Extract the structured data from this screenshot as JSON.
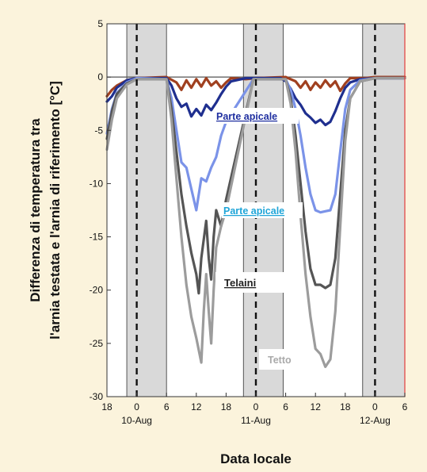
{
  "colors": {
    "background": "#fbf3dc",
    "plot_background": "#ffffff",
    "night_shade": "#d9d9d9",
    "brown": "#a0401f",
    "navy": "#1f2f8f",
    "light_blue": "#7b93e8",
    "dark_gray": "#555555",
    "light_gray": "#9c9c9c",
    "label_navy": "#1f2fa0",
    "label_cyan": "#1fa5d8",
    "label_gray": "#aaaaaa"
  },
  "chart_data": {
    "type": "line",
    "xlabel": "Data locale",
    "ylabel_line1": "Differenza di temperatura tra",
    "ylabel_line2": "l'arnia testata e l'arnia di riferimento [°C]",
    "xlim": [
      "09-Aug 18:00",
      "12-Aug 06:00"
    ],
    "ylim": [
      -30,
      5
    ],
    "y_ticks": [
      "5",
      "0",
      "-5",
      "-10",
      "-15",
      "-20",
      "-25",
      "-30"
    ],
    "x_ticks": [
      "18",
      "0",
      "6",
      "12",
      "18",
      "0",
      "6",
      "12",
      "18",
      "0",
      "6"
    ],
    "x_dates": [
      "10-Aug",
      "11-Aug",
      "12-Aug"
    ],
    "night_bands": [
      [
        "09-Aug 22:00",
        "10-Aug 06:00"
      ],
      [
        "10-Aug 21:30",
        "11-Aug 05:30"
      ],
      [
        "11-Aug 21:30",
        "12-Aug 06:00"
      ]
    ],
    "midnight_lines": [
      "10-Aug 00:00",
      "11-Aug 00:00",
      "12-Aug 00:00"
    ],
    "annotations": [
      {
        "text": "Parte apicale",
        "color": "navy"
      },
      {
        "text": "Parte apicale",
        "color": "cyan"
      },
      {
        "text": "Telaini",
        "color": "dark"
      },
      {
        "text": "Tetto",
        "color": "gray"
      }
    ],
    "series": [
      {
        "color_key": "brown",
        "points": [
          [
            "09-Aug 18:00",
            -1.8
          ],
          [
            "09-Aug 19:00",
            -1.2
          ],
          [
            "09-Aug 20:00",
            -0.8
          ],
          [
            "09-Aug 22:00",
            -0.3
          ],
          [
            "10-Aug 00:00",
            -0.1
          ],
          [
            "10-Aug 06:00",
            0.0
          ],
          [
            "10-Aug 08:00",
            -0.5
          ],
          [
            "10-Aug 09:00",
            -1.2
          ],
          [
            "10-Aug 10:00",
            -0.3
          ],
          [
            "10-Aug 11:00",
            -1.0
          ],
          [
            "10-Aug 12:00",
            -0.2
          ],
          [
            "10-Aug 13:00",
            -0.9
          ],
          [
            "10-Aug 14:00",
            -0.1
          ],
          [
            "10-Aug 15:00",
            -0.8
          ],
          [
            "10-Aug 16:00",
            -0.4
          ],
          [
            "10-Aug 17:00",
            -1.0
          ],
          [
            "10-Aug 18:00",
            -0.5
          ],
          [
            "10-Aug 19:00",
            -0.1
          ],
          [
            "10-Aug 22:00",
            -0.2
          ],
          [
            "11-Aug 00:00",
            -0.1
          ],
          [
            "11-Aug 06:00",
            0.0
          ],
          [
            "11-Aug 08:00",
            -0.4
          ],
          [
            "11-Aug 09:00",
            -1.0
          ],
          [
            "11-Aug 10:00",
            -0.4
          ],
          [
            "11-Aug 11:00",
            -1.2
          ],
          [
            "11-Aug 12:00",
            -0.5
          ],
          [
            "11-Aug 13:00",
            -1.0
          ],
          [
            "11-Aug 14:00",
            -0.3
          ],
          [
            "11-Aug 15:00",
            -0.9
          ],
          [
            "11-Aug 16:00",
            -0.4
          ],
          [
            "11-Aug 17:00",
            -1.3
          ],
          [
            "11-Aug 18:00",
            -0.6
          ],
          [
            "11-Aug 19:00",
            -0.1
          ],
          [
            "11-Aug 22:00",
            -0.1
          ],
          [
            "12-Aug 00:00",
            0.0
          ],
          [
            "12-Aug 06:00",
            0.0
          ]
        ]
      },
      {
        "color_key": "navy",
        "points": [
          [
            "09-Aug 18:00",
            -2.3
          ],
          [
            "09-Aug 19:00",
            -1.8
          ],
          [
            "09-Aug 20:00",
            -1.0
          ],
          [
            "09-Aug 22:00",
            -0.3
          ],
          [
            "10-Aug 00:00",
            -0.1
          ],
          [
            "10-Aug 06:00",
            -0.1
          ],
          [
            "10-Aug 07:00",
            -0.8
          ],
          [
            "10-Aug 08:00",
            -2.0
          ],
          [
            "10-Aug 09:00",
            -2.8
          ],
          [
            "10-Aug 10:00",
            -2.5
          ],
          [
            "10-Aug 11:00",
            -3.7
          ],
          [
            "10-Aug 12:00",
            -3.0
          ],
          [
            "10-Aug 13:00",
            -3.6
          ],
          [
            "10-Aug 14:00",
            -2.6
          ],
          [
            "10-Aug 15:00",
            -3.1
          ],
          [
            "10-Aug 16:00",
            -2.4
          ],
          [
            "10-Aug 17:00",
            -1.6
          ],
          [
            "10-Aug 18:00",
            -0.9
          ],
          [
            "10-Aug 19:00",
            -0.4
          ],
          [
            "10-Aug 22:00",
            -0.1
          ],
          [
            "11-Aug 00:00",
            -0.1
          ],
          [
            "11-Aug 05:00",
            -0.1
          ],
          [
            "11-Aug 06:00",
            -0.4
          ],
          [
            "11-Aug 07:00",
            -1.1
          ],
          [
            "11-Aug 08:00",
            -2.0
          ],
          [
            "11-Aug 09:00",
            -2.6
          ],
          [
            "11-Aug 10:00",
            -3.4
          ],
          [
            "11-Aug 11:00",
            -3.8
          ],
          [
            "11-Aug 12:00",
            -4.3
          ],
          [
            "11-Aug 13:00",
            -4.0
          ],
          [
            "11-Aug 14:00",
            -4.5
          ],
          [
            "11-Aug 15:00",
            -4.2
          ],
          [
            "11-Aug 16:00",
            -3.2
          ],
          [
            "11-Aug 17:00",
            -2.0
          ],
          [
            "11-Aug 18:00",
            -1.0
          ],
          [
            "11-Aug 19:00",
            -0.5
          ],
          [
            "11-Aug 21:00",
            -0.2
          ],
          [
            "12-Aug 00:00",
            -0.1
          ],
          [
            "12-Aug 06:00",
            -0.1
          ]
        ]
      },
      {
        "color_key": "light_blue",
        "points": [
          [
            "09-Aug 18:00",
            -5.3
          ],
          [
            "09-Aug 19:00",
            -3.0
          ],
          [
            "09-Aug 20:00",
            -1.5
          ],
          [
            "09-Aug 22:00",
            -0.5
          ],
          [
            "10-Aug 00:00",
            -0.1
          ],
          [
            "10-Aug 06:00",
            -0.2
          ],
          [
            "10-Aug 07:00",
            -2.0
          ],
          [
            "10-Aug 08:00",
            -5.0
          ],
          [
            "10-Aug 09:00",
            -8.0
          ],
          [
            "10-Aug 10:00",
            -8.5
          ],
          [
            "10-Aug 11:00",
            -10.5
          ],
          [
            "10-Aug 12:00",
            -12.5
          ],
          [
            "10-Aug 13:00",
            -9.5
          ],
          [
            "10-Aug 14:00",
            -9.8
          ],
          [
            "10-Aug 15:00",
            -8.5
          ],
          [
            "10-Aug 16:00",
            -7.5
          ],
          [
            "10-Aug 17:00",
            -5.5
          ],
          [
            "10-Aug 18:00",
            -4.2
          ],
          [
            "10-Aug 23:30",
            -0.2
          ],
          [
            "11-Aug 06:00",
            -0.2
          ],
          [
            "11-Aug 07:00",
            -1.2
          ],
          [
            "11-Aug 08:00",
            -3.0
          ],
          [
            "11-Aug 09:00",
            -5.5
          ],
          [
            "11-Aug 10:00",
            -8.5
          ],
          [
            "11-Aug 11:00",
            -11.0
          ],
          [
            "11-Aug 12:00",
            -12.5
          ],
          [
            "11-Aug 13:00",
            -12.7
          ],
          [
            "11-Aug 14:00",
            -12.6
          ],
          [
            "11-Aug 15:00",
            -12.5
          ],
          [
            "11-Aug 16:00",
            -11.0
          ],
          [
            "11-Aug 17:00",
            -7.0
          ],
          [
            "11-Aug 18:00",
            -3.0
          ],
          [
            "11-Aug 19:00",
            -1.2
          ],
          [
            "11-Aug 21:00",
            -0.3
          ],
          [
            "12-Aug 00:00",
            -0.1
          ],
          [
            "12-Aug 06:00",
            -0.1
          ]
        ]
      },
      {
        "color_key": "dark_gray",
        "points": [
          [
            "09-Aug 18:00",
            -5.8
          ],
          [
            "09-Aug 19:00",
            -3.2
          ],
          [
            "09-Aug 20:00",
            -1.6
          ],
          [
            "09-Aug 22:00",
            -0.6
          ],
          [
            "10-Aug 00:00",
            -0.2
          ],
          [
            "10-Aug 06:00",
            -0.2
          ],
          [
            "10-Aug 07:00",
            -3.0
          ],
          [
            "10-Aug 08:00",
            -7.0
          ],
          [
            "10-Aug 09:00",
            -11.0
          ],
          [
            "10-Aug 10:00",
            -14.0
          ],
          [
            "10-Aug 11:00",
            -16.5
          ],
          [
            "10-Aug 12:00",
            -18.5
          ],
          [
            "10-Aug 12:30",
            -20.3
          ],
          [
            "10-Aug 13:00",
            -17.0
          ],
          [
            "10-Aug 14:00",
            -13.5
          ],
          [
            "10-Aug 14:30",
            -17.0
          ],
          [
            "10-Aug 15:00",
            -19.0
          ],
          [
            "10-Aug 15:30",
            -15.0
          ],
          [
            "10-Aug 16:00",
            -12.5
          ],
          [
            "10-Aug 17:00",
            -14.0
          ],
          [
            "10-Aug 18:00",
            -11.5
          ],
          [
            "10-Aug 23:30",
            -0.2
          ],
          [
            "11-Aug 06:00",
            -0.2
          ],
          [
            "11-Aug 07:00",
            -2.0
          ],
          [
            "11-Aug 08:00",
            -5.5
          ],
          [
            "11-Aug 09:00",
            -10.0
          ],
          [
            "11-Aug 10:00",
            -14.5
          ],
          [
            "11-Aug 11:00",
            -18.0
          ],
          [
            "11-Aug 12:00",
            -19.5
          ],
          [
            "11-Aug 13:00",
            -19.5
          ],
          [
            "11-Aug 14:00",
            -19.8
          ],
          [
            "11-Aug 15:00",
            -19.5
          ],
          [
            "11-Aug 16:00",
            -17.0
          ],
          [
            "11-Aug 17:00",
            -11.0
          ],
          [
            "11-Aug 18:00",
            -5.0
          ],
          [
            "11-Aug 19:00",
            -2.0
          ],
          [
            "11-Aug 21:00",
            -0.4
          ],
          [
            "12-Aug 00:00",
            -0.1
          ],
          [
            "12-Aug 06:00",
            -0.1
          ]
        ]
      },
      {
        "color_key": "light_gray",
        "points": [
          [
            "09-Aug 18:00",
            -6.8
          ],
          [
            "09-Aug 19:00",
            -4.0
          ],
          [
            "09-Aug 20:00",
            -2.0
          ],
          [
            "09-Aug 22:00",
            -0.7
          ],
          [
            "10-Aug 00:00",
            -0.2
          ],
          [
            "10-Aug 06:00",
            -0.2
          ],
          [
            "10-Aug 07:00",
            -4.0
          ],
          [
            "10-Aug 08:00",
            -9.5
          ],
          [
            "10-Aug 09:00",
            -15.0
          ],
          [
            "10-Aug 10:00",
            -19.5
          ],
          [
            "10-Aug 11:00",
            -22.5
          ],
          [
            "10-Aug 12:00",
            -24.5
          ],
          [
            "10-Aug 13:00",
            -26.8
          ],
          [
            "10-Aug 13:30",
            -22.0
          ],
          [
            "10-Aug 14:00",
            -18.5
          ],
          [
            "10-Aug 14:30",
            -22.0
          ],
          [
            "10-Aug 15:00",
            -25.0
          ],
          [
            "10-Aug 15:30",
            -20.0
          ],
          [
            "10-Aug 16:00",
            -16.0
          ],
          [
            "10-Aug 17:00",
            -14.0
          ],
          [
            "10-Aug 18:00",
            -12.5
          ],
          [
            "10-Aug 23:30",
            -0.2
          ],
          [
            "11-Aug 06:00",
            -0.2
          ],
          [
            "11-Aug 07:00",
            -2.5
          ],
          [
            "11-Aug 08:00",
            -7.0
          ],
          [
            "11-Aug 09:00",
            -13.0
          ],
          [
            "11-Aug 10:00",
            -18.5
          ],
          [
            "11-Aug 11:00",
            -22.5
          ],
          [
            "11-Aug 12:00",
            -25.5
          ],
          [
            "11-Aug 13:00",
            -26.0
          ],
          [
            "11-Aug 14:00",
            -27.2
          ],
          [
            "11-Aug 15:00",
            -26.5
          ],
          [
            "11-Aug 16:00",
            -22.0
          ],
          [
            "11-Aug 17:00",
            -14.0
          ],
          [
            "11-Aug 18:00",
            -6.0
          ],
          [
            "11-Aug 19:00",
            -2.0
          ],
          [
            "11-Aug 21:00",
            -0.4
          ],
          [
            "12-Aug 00:00",
            -0.1
          ],
          [
            "12-Aug 06:00",
            -0.1
          ]
        ]
      }
    ]
  }
}
